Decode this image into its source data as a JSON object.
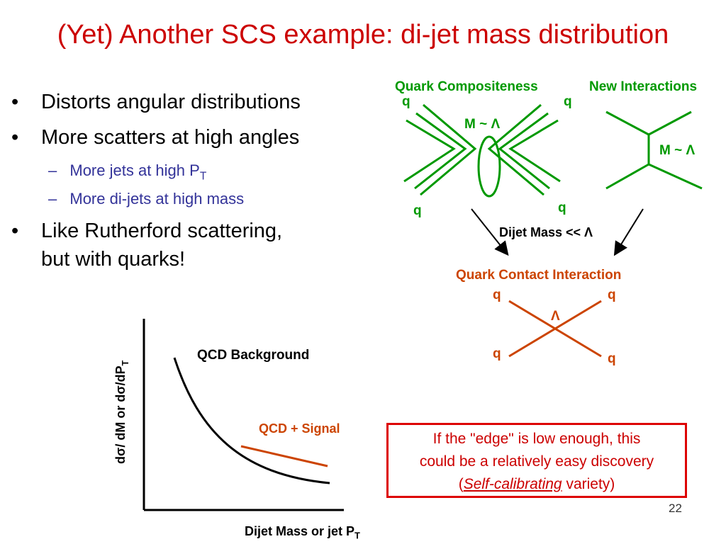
{
  "title": "(Yet) Another SCS example: di-jet mass distribution",
  "bullets": {
    "b1": "Distorts angular distributions",
    "b2": "More scatters at high angles",
    "b2a_pre": "More jets at high P",
    "b2a_sub": "T",
    "b2b": "More di-jets at high mass",
    "b3_line1": "Like Rutherford scattering,",
    "b3_line2": "but with quarks!",
    "marker": "•",
    "dash": "–"
  },
  "diagram": {
    "quark_comp_label": "Quark Compositeness",
    "new_int_label": "New Interactions",
    "q": "q",
    "m_lambda": "M ~ Λ",
    "dijet_mass": "Dijet Mass << Λ",
    "contact_label": "Quark Contact Interaction",
    "lambda": "Λ"
  },
  "plot": {
    "ylabel_pre": "dσ/ dM or dσ/dP",
    "ylabel_sub": "T",
    "xlabel_pre": "Dijet Mass or jet P",
    "xlabel_sub": "T",
    "bg_label": "QCD Background",
    "signal_label": "QCD + Signal"
  },
  "callout": {
    "line1": "If the \"edge\" is low enough, this",
    "line2": "could be a relatively easy discovery",
    "open": "(",
    "italic": "Self-calibrating",
    "close": " variety)"
  },
  "page_number": "22",
  "colors": {
    "title": "#cc0000",
    "green": "#009900",
    "orange": "#cc4400",
    "blue": "#333399"
  }
}
